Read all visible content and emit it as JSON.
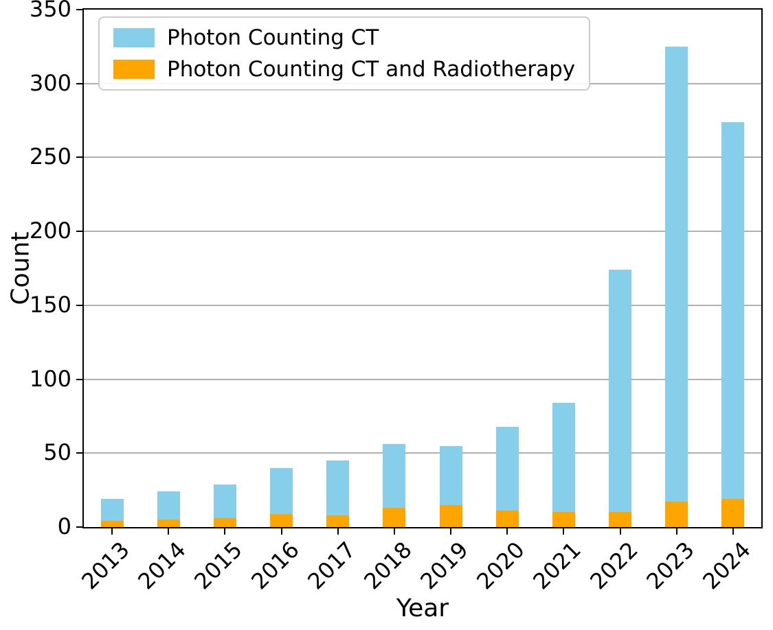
{
  "figure": {
    "xlabel": "Year",
    "ylabel": "Count"
  },
  "legend": {
    "items": [
      {
        "label": "Photon Counting CT",
        "color": "#87CEEB"
      },
      {
        "label": "Photon Counting CT and Radiotherapy",
        "color": "#FFA500"
      }
    ]
  },
  "chart_data": {
    "type": "bar",
    "title": "",
    "xlabel": "Year",
    "ylabel": "Count",
    "categories": [
      "2013",
      "2014",
      "2015",
      "2016",
      "2017",
      "2018",
      "2019",
      "2020",
      "2021",
      "2022",
      "2023",
      "2024"
    ],
    "series": [
      {
        "name": "Photon Counting CT",
        "color": "#87CEEB",
        "values": [
          19,
          24,
          29,
          40,
          45,
          56,
          55,
          68,
          84,
          174,
          325,
          274
        ]
      },
      {
        "name": "Photon Counting CT and Radiotherapy",
        "color": "#FFA500",
        "values": [
          4,
          5,
          6,
          9,
          8,
          13,
          15,
          11,
          10,
          10,
          17,
          19
        ]
      }
    ],
    "series_note": "First series values are total bar heights; second series is the orange overlay segment drawn at the bottom of each bar.",
    "ylim": [
      0,
      350
    ],
    "yticks": [
      0,
      50,
      100,
      150,
      200,
      250,
      300,
      350
    ],
    "grid": "horizontal",
    "grid_color": "#b0b0b0",
    "legend_position": "upper left",
    "bar_width_fraction": 0.4
  }
}
